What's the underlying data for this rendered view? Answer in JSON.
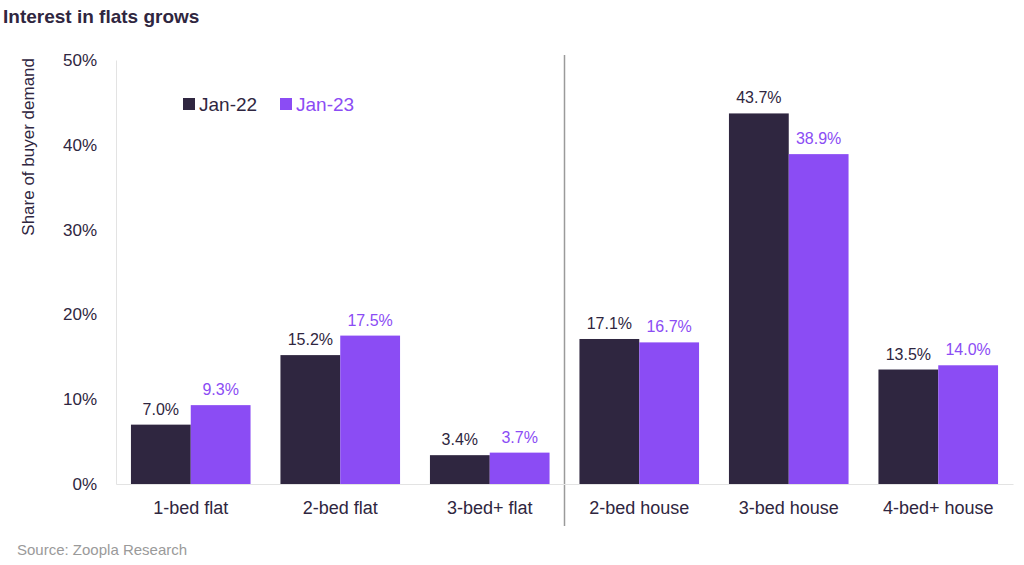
{
  "chart_data": {
    "type": "bar",
    "title": "Interest in flats grows",
    "ylabel": "Share of buyer demand",
    "annotations": [
      "Source: Zoopla Research"
    ],
    "categories": [
      "1-bed flat",
      "2-bed flat",
      "3-bed+ flat",
      "2-bed house",
      "3-bed house",
      "4-bed+ house"
    ],
    "series": [
      {
        "name": "Jan-22",
        "color": "#2f2640",
        "values": [
          7.0,
          15.2,
          3.4,
          17.1,
          43.7,
          13.5
        ],
        "value_labels": [
          "7.0%",
          "15.2%",
          "3.4%",
          "17.1%",
          "43.7%",
          "13.5%"
        ]
      },
      {
        "name": "Jan-23",
        "color": "#8b4cf4",
        "values": [
          9.3,
          17.5,
          3.7,
          16.7,
          38.9,
          14.0
        ],
        "value_labels": [
          "9.3%",
          "17.5%",
          "3.7%",
          "16.7%",
          "38.9%",
          "14.0%"
        ]
      }
    ],
    "ylim": [
      0,
      50
    ],
    "yticks": [
      {
        "value": 0,
        "label": "0%"
      },
      {
        "value": 10,
        "label": "10%"
      },
      {
        "value": 20,
        "label": "20%"
      },
      {
        "value": 30,
        "label": "30%"
      },
      {
        "value": 40,
        "label": "40%"
      },
      {
        "value": 50,
        "label": "50%"
      }
    ],
    "grid": false,
    "legend": "upper left",
    "data_labels": true
  }
}
